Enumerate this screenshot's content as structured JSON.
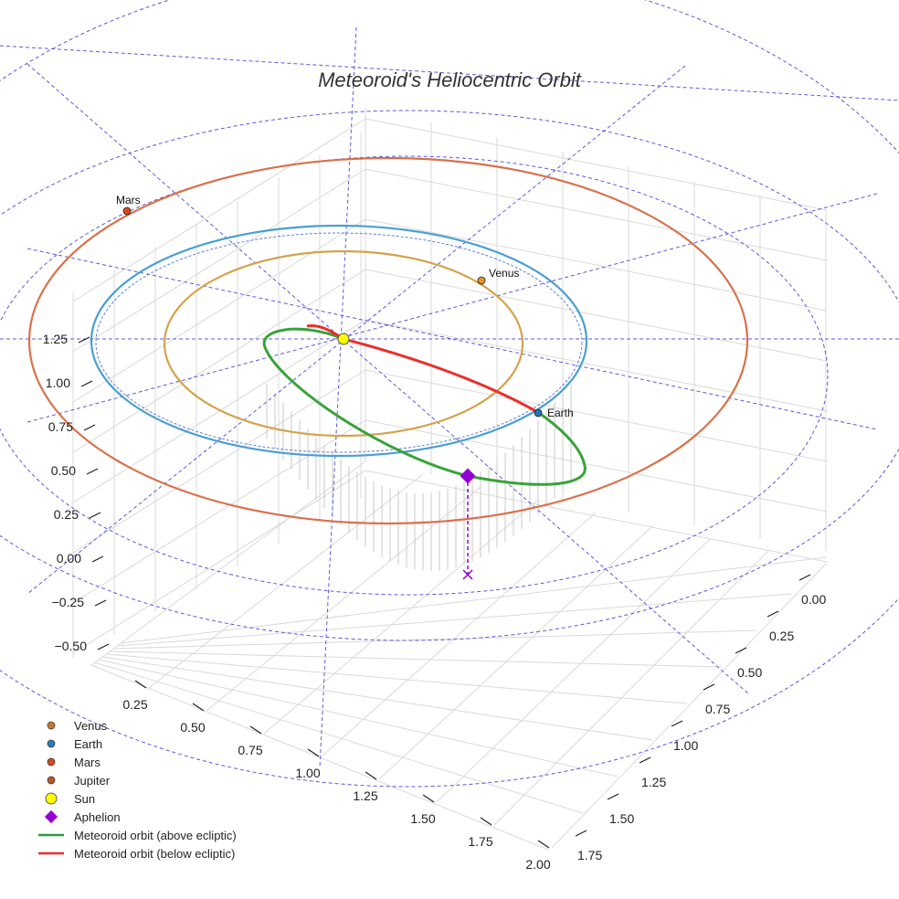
{
  "chart_data": {
    "type": "3d-orbit",
    "title": "Meteoroid's Heliocentric Orbit",
    "z_ticks": [
      "1.25",
      "1.00",
      "0.75",
      "0.50",
      "0.25",
      "0.00",
      "−0.25",
      "−0.50"
    ],
    "x_ticks": [
      "0.25",
      "0.50",
      "0.75",
      "1.00",
      "1.25",
      "1.50",
      "1.75",
      "2.00"
    ],
    "y_ticks": [
      "0.00",
      "0.25",
      "0.50",
      "0.75",
      "1.00",
      "1.25",
      "1.50",
      "1.75"
    ],
    "planets": [
      {
        "name": "Venus",
        "label": "Venus",
        "color": "#e0952a",
        "orbit_color": "#d4a24b",
        "orbit_radius_au": 0.72
      },
      {
        "name": "Earth",
        "label": "Earth",
        "color": "#1f77b4",
        "orbit_color": "#4a9fd0",
        "orbit_radius_au": 1.0
      },
      {
        "name": "Mars",
        "label": "Mars",
        "color": "#d9481b",
        "orbit_color": "#d9704b",
        "orbit_radius_au": 1.52
      }
    ],
    "legend": [
      {
        "label": "Venus",
        "marker": "dot",
        "color": "#c9772b"
      },
      {
        "label": "Earth",
        "marker": "dot",
        "color": "#2b7bb8"
      },
      {
        "label": "Mars",
        "marker": "dot",
        "color": "#d04a1e"
      },
      {
        "label": "Jupiter",
        "marker": "dot",
        "color": "#b35a2e"
      },
      {
        "label": "Sun",
        "marker": "sun",
        "color": "#ffff00"
      },
      {
        "label": "Aphelion",
        "marker": "diamond",
        "color": "#9400d3"
      },
      {
        "label": "Meteoroid orbit (above ecliptic)",
        "marker": "line",
        "color": "#2e9a3a"
      },
      {
        "label": "Meteoroid orbit (below ecliptic)",
        "marker": "line",
        "color": "#e8302c"
      }
    ],
    "meteoroid": {
      "above_color": "#3aa23a",
      "below_color": "#e8302c",
      "aphelion_color": "#9400d3"
    },
    "grid": true
  }
}
